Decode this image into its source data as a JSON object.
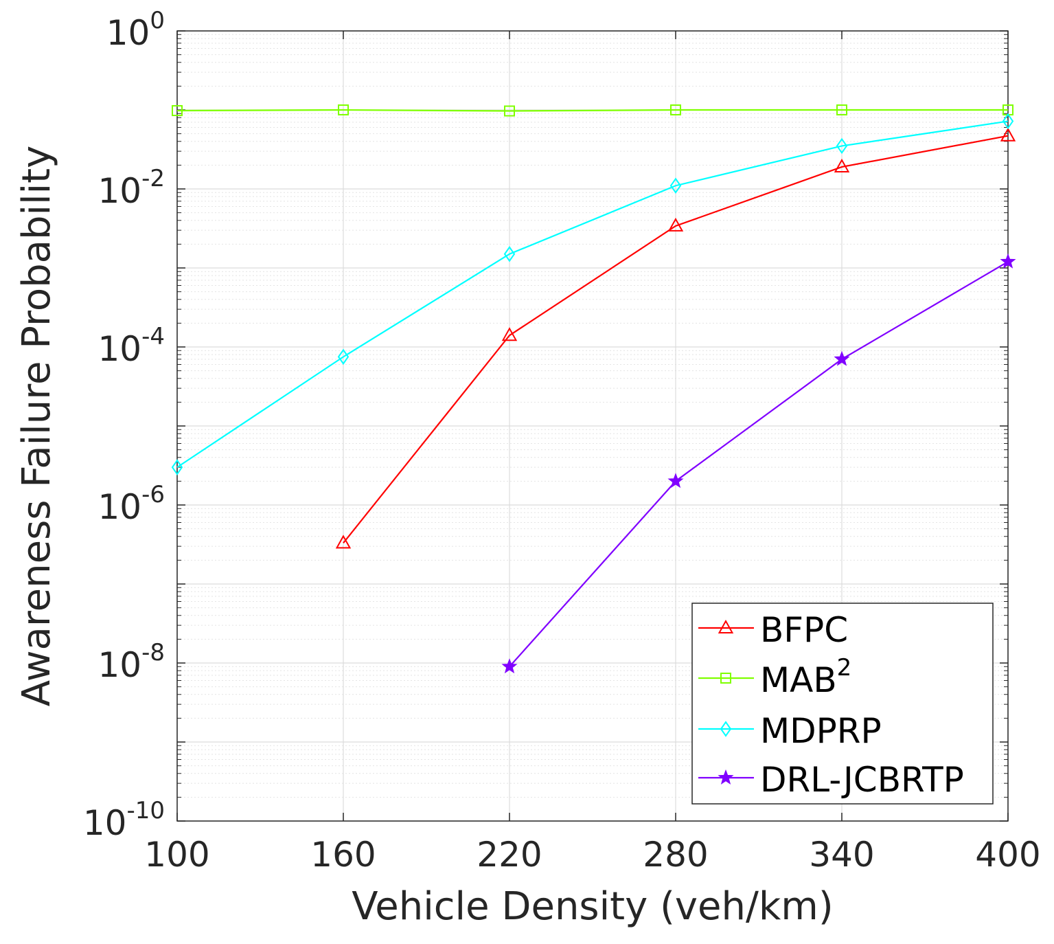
{
  "chart_data": {
    "type": "line",
    "title": "",
    "xlabel": "Vehicle Density (veh/km)",
    "ylabel": "Awareness Failure Probability",
    "xscale": "linear",
    "yscale": "log",
    "xlim": [
      100,
      400
    ],
    "ylim": [
      1e-10,
      1
    ],
    "x_ticks": [
      100,
      160,
      220,
      280,
      340,
      400
    ],
    "x_tick_labels": [
      "100",
      "160",
      "220",
      "280",
      "340",
      "400"
    ],
    "y_ticks": [
      {
        "value": 1e-10,
        "base": "10",
        "exp": "-10"
      },
      {
        "value": 1e-08,
        "base": "10",
        "exp": "-8"
      },
      {
        "value": 1e-06,
        "base": "10",
        "exp": "-6"
      },
      {
        "value": 0.0001,
        "base": "10",
        "exp": "-4"
      },
      {
        "value": 0.01,
        "base": "10",
        "exp": "-2"
      },
      {
        "value": 1,
        "base": "10",
        "exp": "0"
      }
    ],
    "grid": true,
    "legend_position": "bottom-right",
    "series": [
      {
        "name": "BFPC",
        "base": "BFPC",
        "sup": "",
        "color": "#ff0000",
        "marker": "triangle",
        "x": [
          160,
          220,
          280,
          340,
          400
        ],
        "values": [
          3.3e-07,
          0.00014,
          0.0034,
          0.019,
          0.047
        ]
      },
      {
        "name": "MAB^2",
        "base": "MAB",
        "sup": "2",
        "color": "#7fff00",
        "marker": "square",
        "x": [
          100,
          160,
          220,
          280,
          340,
          400
        ],
        "values": [
          0.098,
          0.1,
          0.097,
          0.1,
          0.1,
          0.1
        ]
      },
      {
        "name": "MDPRP",
        "base": "MDPRP",
        "sup": "",
        "color": "#00ffff",
        "marker": "diamond",
        "x": [
          100,
          160,
          220,
          280,
          340,
          400
        ],
        "values": [
          3e-06,
          7.5e-05,
          0.0015,
          0.011,
          0.035,
          0.072
        ]
      },
      {
        "name": "DRL-JCBRTP",
        "base": "DRL-JCBRTP",
        "sup": "",
        "color": "#8000ff",
        "marker": "star",
        "x": [
          220,
          280,
          340,
          400
        ],
        "values": [
          9e-09,
          2e-06,
          7e-05,
          0.0012
        ]
      }
    ]
  }
}
